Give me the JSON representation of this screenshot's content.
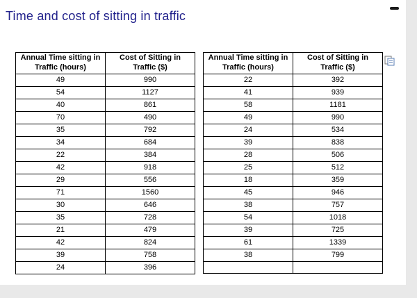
{
  "title": "Time and cost of sitting in traffic",
  "window": {
    "minimize_label": "minimize"
  },
  "icons": {
    "minimize": "minus-icon",
    "paste_options": "paste-options-icon"
  },
  "colors": {
    "title_text": "#22228c",
    "table_border": "#000000",
    "panel_background": "#ffffff",
    "page_background": "#e9e9e9"
  },
  "tables": [
    {
      "name": "traffic-table-left",
      "headers": [
        "Annual Time sitting in Traffic (hours)",
        "Cost of Sitting in Traffic ($)"
      ],
      "rows": [
        [
          "49",
          "990"
        ],
        [
          "54",
          "1127"
        ],
        [
          "40",
          "861"
        ],
        [
          "70",
          "490"
        ],
        [
          "35",
          "792"
        ],
        [
          "34",
          "684"
        ],
        [
          "22",
          "384"
        ],
        [
          "42",
          "918"
        ],
        [
          "29",
          "556"
        ],
        [
          "71",
          "1560"
        ],
        [
          "30",
          "646"
        ],
        [
          "35",
          "728"
        ],
        [
          "21",
          "479"
        ],
        [
          "42",
          "824"
        ],
        [
          "39",
          "758"
        ],
        [
          "24",
          "396"
        ]
      ]
    },
    {
      "name": "traffic-table-right",
      "headers": [
        "Annual Time sitting in Traffic (hours)",
        "Cost of Sitting in Traffic ($)"
      ],
      "rows": [
        [
          "22",
          "392"
        ],
        [
          "41",
          "939"
        ],
        [
          "58",
          "1181"
        ],
        [
          "49",
          "990"
        ],
        [
          "24",
          "534"
        ],
        [
          "39",
          "838"
        ],
        [
          "28",
          "506"
        ],
        [
          "25",
          "512"
        ],
        [
          "18",
          "359"
        ],
        [
          "45",
          "946"
        ],
        [
          "38",
          "757"
        ],
        [
          "54",
          "1018"
        ],
        [
          "39",
          "725"
        ],
        [
          "61",
          "1339"
        ],
        [
          "38",
          "799"
        ],
        [
          "",
          ""
        ]
      ]
    }
  ]
}
